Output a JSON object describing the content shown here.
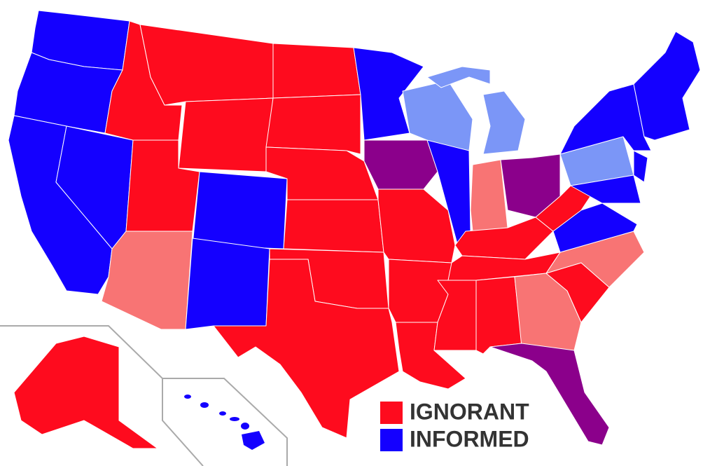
{
  "legend": {
    "items": [
      {
        "label": "IGNORANT",
        "color": "#fe0b1e"
      },
      {
        "label": "INFORMED",
        "color": "#1400ff"
      }
    ]
  }
}
